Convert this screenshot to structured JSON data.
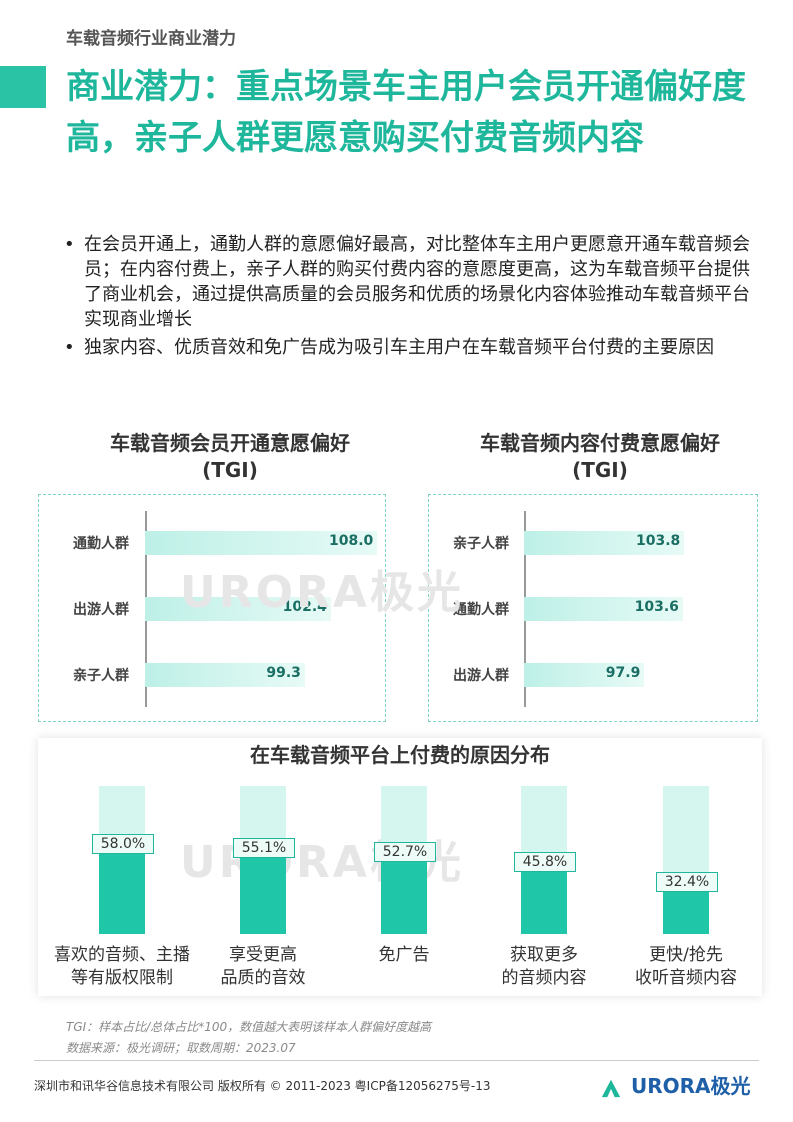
{
  "header": {
    "section": "车载音频行业商业潜力"
  },
  "title": "商业潜力：重点场景车主用户会员开通偏好度高，亲子人群更愿意购买付费音频内容",
  "bullets": [
    "在会员开通上，通勤人群的意愿偏好最高，对比整体车主用户更愿意开通车载音频会员；在内容付费上，亲子人群的购买付费内容的意愿度更高，这为车载音频平台提供了商业机会，通过提供高质量的会员服务和优质的场景化内容体验推动车载音频平台实现商业增长",
    "独家内容、优质音效和免广告成为吸引车主用户在车载音频平台付费的主要原因"
  ],
  "watermark": {
    "text": "URORA极光"
  },
  "chart_data": [
    {
      "type": "bar",
      "orientation": "horizontal",
      "title": "车载音频会员开通意愿偏好",
      "subtitle": "(TGI)",
      "categories": [
        "通勤人群",
        "出游人群",
        "亲子人群"
      ],
      "values": [
        108.0,
        102.4,
        99.3
      ],
      "value_labels": [
        "108.0",
        "102.4",
        "99.3"
      ],
      "color": "#bdf0e7"
    },
    {
      "type": "bar",
      "orientation": "horizontal",
      "title": "车载音频内容付费意愿偏好",
      "subtitle": "(TGI)",
      "categories": [
        "亲子人群",
        "通勤人群",
        "出游人群"
      ],
      "values": [
        103.8,
        103.6,
        97.9
      ],
      "value_labels": [
        "103.8",
        "103.6",
        "97.9"
      ],
      "color": "#bdf0e7"
    },
    {
      "type": "bar",
      "orientation": "vertical",
      "title": "在车载音频平台上付费的原因分布",
      "categories": [
        [
          "喜欢的音频、主播",
          "等有版权限制"
        ],
        [
          "享受更高",
          "品质的音效"
        ],
        [
          "免广告"
        ],
        [
          "获取更多",
          "的音频内容"
        ],
        [
          "更快/抢先",
          "收听音频内容"
        ]
      ],
      "values": [
        58.0,
        55.1,
        52.7,
        45.8,
        32.4
      ],
      "value_labels": [
        "58.0%",
        "55.1%",
        "52.7%",
        "45.8%",
        "32.4%"
      ],
      "ylim": [
        0,
        100
      ],
      "color": "#1fc6a7"
    }
  ],
  "notes": {
    "tgi": "TGI：样本占比/总体占比*100，数值越大表明该样本人群偏好度越高",
    "source": "数据来源：极光调研；取数周期：2023.07"
  },
  "footer": {
    "copyright": "深圳市和讯华谷信息技术有限公司 版权所有 © 2011-2023 粤ICP备12056275号-13",
    "logo_text": "URORA极光"
  }
}
